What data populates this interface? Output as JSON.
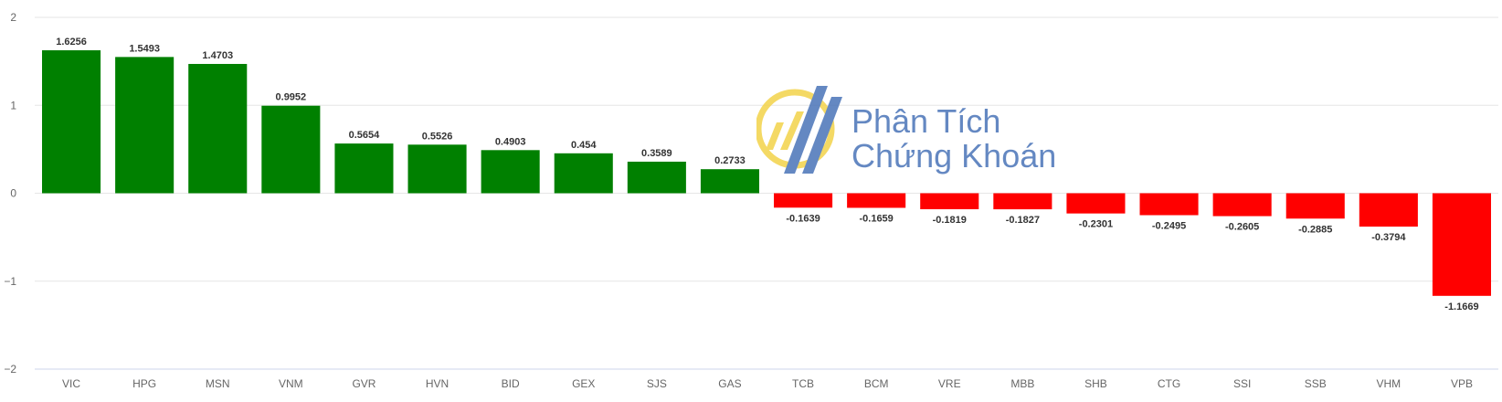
{
  "chart_data": {
    "type": "bar",
    "categories": [
      "VIC",
      "HPG",
      "MSN",
      "VNM",
      "GVR",
      "HVN",
      "BID",
      "GEX",
      "SJS",
      "GAS",
      "TCB",
      "BCM",
      "VRE",
      "MBB",
      "SHB",
      "CTG",
      "SSI",
      "SSB",
      "VHM",
      "VPB"
    ],
    "values": [
      1.6256,
      1.5493,
      1.4703,
      0.9952,
      0.5654,
      0.5526,
      0.4903,
      0.454,
      0.3589,
      0.2733,
      -0.1639,
      -0.1659,
      -0.1819,
      -0.1827,
      -0.2301,
      -0.2495,
      -0.2605,
      -0.2885,
      -0.3794,
      -1.1669
    ],
    "value_labels": [
      "1.6256",
      "1.5493",
      "1.4703",
      "0.9952",
      "0.5654",
      "0.5526",
      "0.4903",
      "0.454",
      "0.3589",
      "0.2733",
      "-0.1639",
      "-0.1659",
      "-0.1819",
      "-0.1827",
      "-0.2301",
      "-0.2495",
      "-0.2605",
      "-0.2885",
      "-0.3794",
      "-1.1669"
    ],
    "yticks": [
      2,
      1,
      0,
      -1,
      -2
    ],
    "ytick_labels": [
      "2",
      "1",
      "0",
      "−1",
      "−2"
    ],
    "ylim": [
      -2,
      2
    ],
    "grid": true,
    "colors": {
      "positive": "#008000",
      "negative": "#ff0000",
      "grid": "#e6e6e6",
      "axis": "#ccd6eb",
      "text": "#666666",
      "label": "#333333"
    }
  },
  "watermark": {
    "line1": "Phân Tích",
    "line2": "Chứng Khoán"
  }
}
